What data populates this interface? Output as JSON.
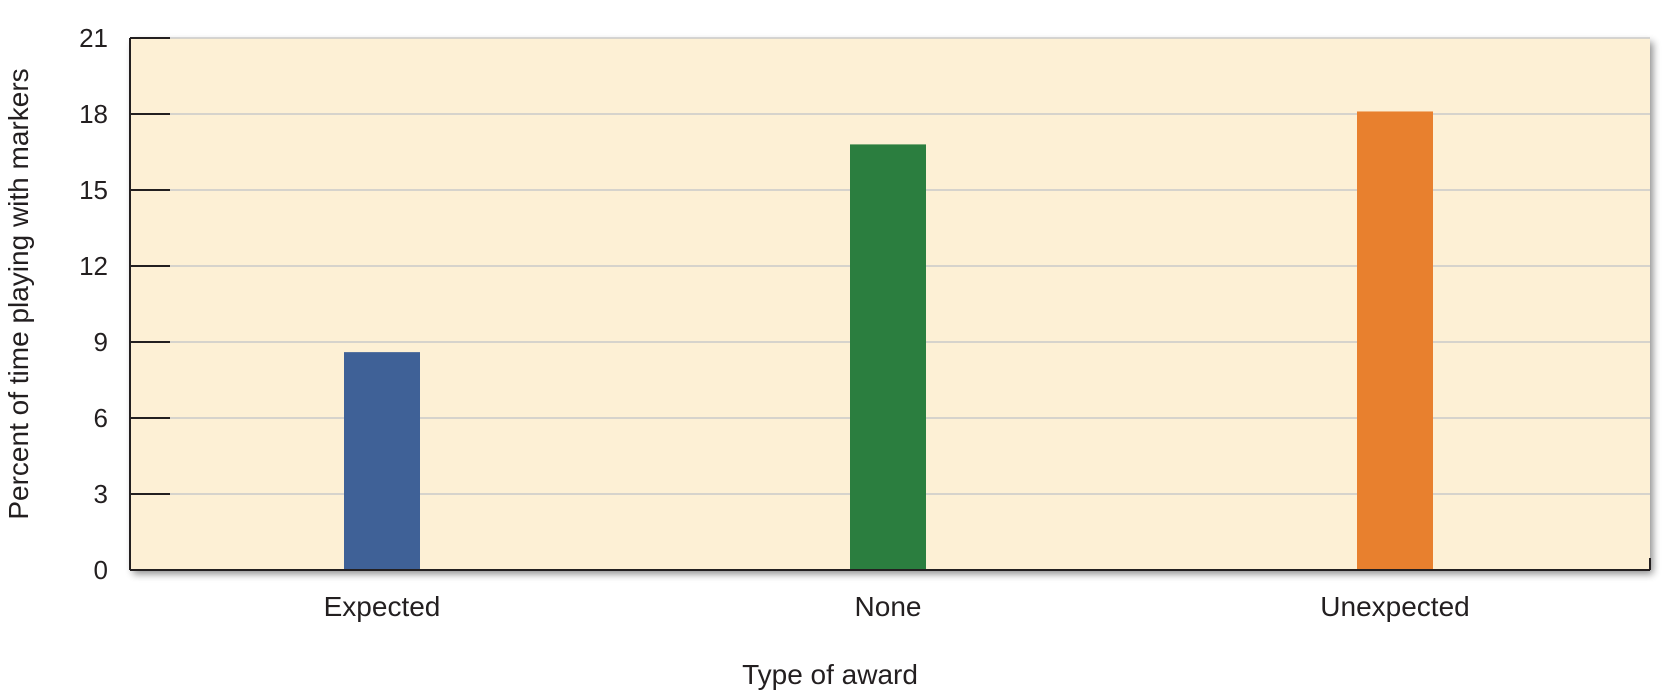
{
  "chart_data": {
    "type": "bar",
    "categories": [
      "Expected",
      "None",
      "Unexpected"
    ],
    "values": [
      8.6,
      16.8,
      18.1
    ],
    "colors": [
      "#3f6197",
      "#2b7e3f",
      "#e8802e"
    ],
    "title": "",
    "xlabel": "Type of award",
    "ylabel": "Percent of time playing with markers",
    "ylim": [
      0,
      21
    ],
    "yticks": [
      0,
      3,
      6,
      9,
      12,
      15,
      18,
      21
    ],
    "ytick_labels": [
      "0",
      "3",
      "6",
      "9",
      "12",
      "15",
      "18",
      "21"
    ],
    "grid": true,
    "plot_background": "#fdf0d5",
    "grid_color": "#c9c9c9"
  }
}
